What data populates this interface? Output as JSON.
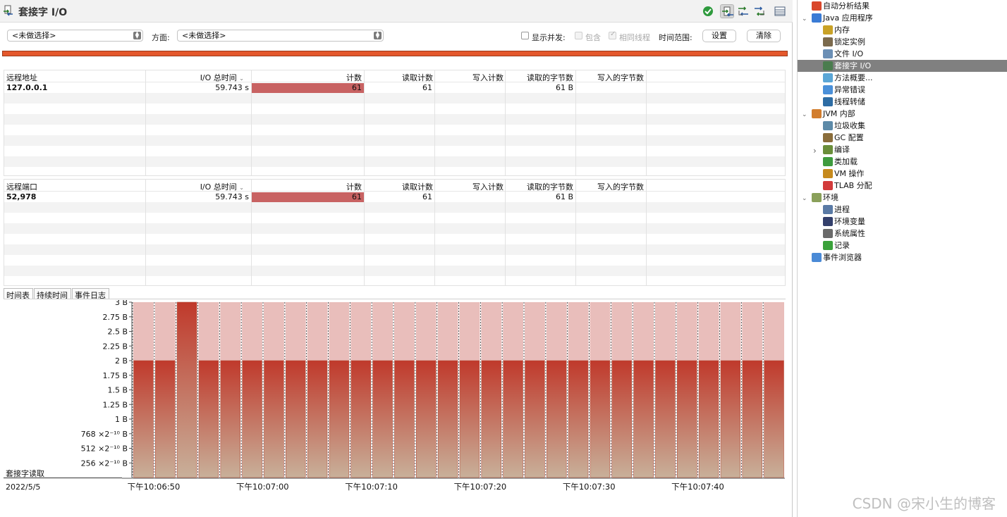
{
  "title": "套接字 I/O",
  "filter": {
    "select1": "<未做选择>",
    "aspect_label": "方面:",
    "select2": "<未做选择>",
    "show_concurrent": "显示并发:",
    "contains": "包含",
    "same_thread": "相同线程",
    "time_range": "时间范围:",
    "set_button": "设置",
    "clear_button": "清除"
  },
  "table1": {
    "headers": [
      "远程地址",
      "I/O 总时间",
      "计数",
      "读取计数",
      "写入计数",
      "读取的字节数",
      "写入的字节数"
    ],
    "rows": [
      {
        "key": "127.0.0.1",
        "total": "59.743 s",
        "count": "61",
        "read_count": "61",
        "write_count": "",
        "read_bytes": "61 B",
        "write_bytes": ""
      }
    ]
  },
  "table2": {
    "headers": [
      "远程端口",
      "I/O 总时间",
      "计数",
      "读取计数",
      "写入计数",
      "读取的字节数",
      "写入的字节数"
    ],
    "rows": [
      {
        "key": "52,978",
        "total": "59.743 s",
        "count": "61",
        "read_count": "61",
        "write_count": "",
        "read_bytes": "61 B",
        "write_bytes": ""
      }
    ]
  },
  "chart_tabs": [
    "时间表",
    "持续时间",
    "事件日志"
  ],
  "chart_data": {
    "type": "bar",
    "ylabel": "",
    "series_label": "套接字读取",
    "date": "2022/5/5",
    "y_ticks": [
      "3 B",
      "2.75 B",
      "2.5 B",
      "2.25 B",
      "2 B",
      "1.75 B",
      "1.5 B",
      "1.25 B",
      "1 B",
      "768 ×2⁻¹⁰ B",
      "512 ×2⁻¹⁰ B",
      "256 ×2⁻¹⁰ B"
    ],
    "ylim": [
      0,
      3
    ],
    "x_ticks": [
      "下午10:06:50",
      "下午10:07:00",
      "下午10:07:10",
      "下午10:07:20",
      "下午10:07:30",
      "下午10:07:40"
    ],
    "values": [
      2,
      2,
      3,
      2,
      2,
      2,
      2,
      2,
      2,
      2,
      2,
      2,
      2,
      2,
      2,
      2,
      2,
      2,
      2,
      2,
      2,
      2,
      2,
      2,
      2,
      2,
      2,
      2,
      2,
      2
    ],
    "colors": {
      "bar_top": "#c0392b",
      "bar_bottom": "#c8b09a",
      "band": "#e9bebb",
      "peak_top": "#c0392b"
    }
  },
  "tree": {
    "items": [
      {
        "label": "自动分析结果",
        "level": 1,
        "icon": "analysis-results-icon",
        "color": "#d9472b"
      },
      {
        "label": "Java 应用程序",
        "level": 1,
        "icon": "java-app-icon",
        "color": "#3a7bd5",
        "expanded": true
      },
      {
        "label": "内存",
        "level": 2,
        "icon": "memory-icon",
        "color": "#c9a227"
      },
      {
        "label": "锁定实例",
        "level": 2,
        "icon": "lock-icon",
        "color": "#7b6a4d"
      },
      {
        "label": "文件 I/O",
        "level": 2,
        "icon": "file-io-icon",
        "color": "#6b8fb5"
      },
      {
        "label": "套接字 I/O",
        "level": 2,
        "icon": "socket-io-icon",
        "color": "#4a7c4e",
        "selected": true
      },
      {
        "label": "方法概要...",
        "level": 2,
        "icon": "method-profiling-icon",
        "color": "#5ba6d6"
      },
      {
        "label": "异常错误",
        "level": 2,
        "icon": "exceptions-icon",
        "color": "#4a90d9"
      },
      {
        "label": "线程转储",
        "level": 2,
        "icon": "thread-dump-icon",
        "color": "#2e6da4"
      },
      {
        "label": "JVM 内部",
        "level": 1,
        "icon": "jvm-internals-icon",
        "color": "#d27d2d",
        "expanded": true
      },
      {
        "label": "垃圾收集",
        "level": 2,
        "icon": "trash-icon",
        "color": "#5d8aa8"
      },
      {
        "label": "GC 配置",
        "level": 2,
        "icon": "gc-config-icon",
        "color": "#8a6d3b"
      },
      {
        "label": "编译",
        "level": 2,
        "icon": "compile-icon",
        "color": "#6a8e3a",
        "collapsed": true
      },
      {
        "label": "类加载",
        "level": 2,
        "icon": "class-loading-icon",
        "color": "#3f9b3f"
      },
      {
        "label": "VM 操作",
        "level": 2,
        "icon": "vm-ops-icon",
        "color": "#c68a1d"
      },
      {
        "label": "TLAB 分配",
        "level": 2,
        "icon": "tlab-icon",
        "color": "#d23b3b"
      },
      {
        "label": "环境",
        "level": 1,
        "icon": "environment-icon",
        "color": "#8aa05a",
        "expanded": true
      },
      {
        "label": "进程",
        "level": 2,
        "icon": "process-icon",
        "color": "#5a7aa5"
      },
      {
        "label": "环境变量",
        "level": 2,
        "icon": "env-vars-icon",
        "color": "#333f6b"
      },
      {
        "label": "系统属性",
        "level": 2,
        "icon": "system-properties-icon",
        "color": "#6a6a6a"
      },
      {
        "label": "记录",
        "level": 2,
        "icon": "recording-icon",
        "color": "#3aa13a"
      },
      {
        "label": "事件浏览器",
        "level": 1,
        "icon": "event-browser-icon",
        "color": "#4a8ad6"
      }
    ]
  },
  "watermark": "CSDN @宋小生的博客"
}
